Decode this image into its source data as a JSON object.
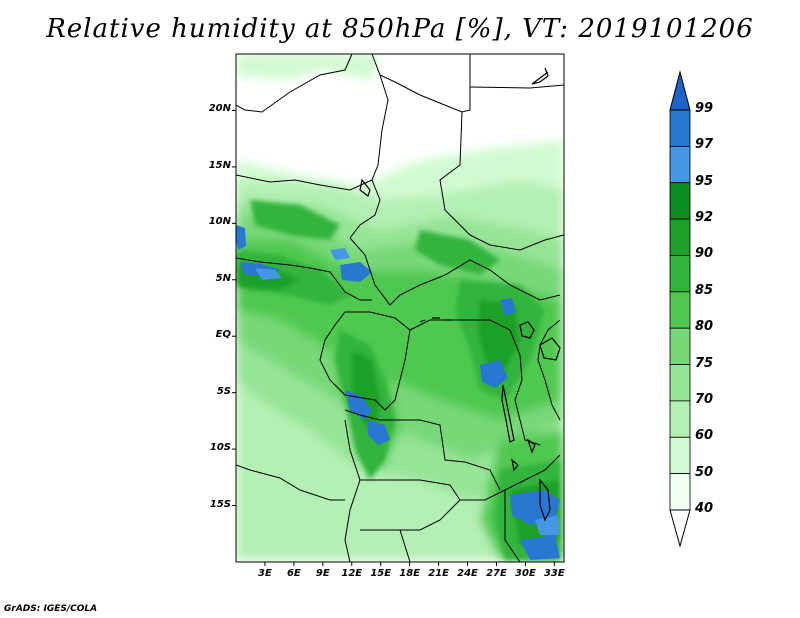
{
  "title": "Relative humidity at 850hPa [%], VT: 2019101206",
  "credit": "GrADS: IGES/COLA",
  "map": {
    "lon_range": [
      0,
      34
    ],
    "lat_range": [
      -20,
      25
    ],
    "y_ticks": [
      {
        "lat": 20,
        "label": "20N"
      },
      {
        "lat": 15,
        "label": "15N"
      },
      {
        "lat": 10,
        "label": "10N"
      },
      {
        "lat": 5,
        "label": "5N"
      },
      {
        "lat": 0,
        "label": "EQ"
      },
      {
        "lat": -5,
        "label": "5S"
      },
      {
        "lat": -10,
        "label": "10S"
      },
      {
        "lat": -15,
        "label": "15S"
      }
    ],
    "x_ticks": [
      {
        "lon": 3,
        "label": "3E"
      },
      {
        "lon": 6,
        "label": "6E"
      },
      {
        "lon": 9,
        "label": "9E"
      },
      {
        "lon": 12,
        "label": "12E"
      },
      {
        "lon": 15,
        "label": "15E"
      },
      {
        "lon": 18,
        "label": "18E"
      },
      {
        "lon": 21,
        "label": "21E"
      },
      {
        "lon": 24,
        "label": "24E"
      },
      {
        "lon": 27,
        "label": "27E"
      },
      {
        "lon": 30,
        "label": "30E"
      },
      {
        "lon": 33,
        "label": "33E"
      }
    ]
  },
  "colorbar": {
    "labels": [
      "99",
      "97",
      "95",
      "92",
      "90",
      "85",
      "80",
      "75",
      "70",
      "60",
      "50",
      "40"
    ],
    "colors": [
      "#1e64c8",
      "#2878d2",
      "#4696e6",
      "#0a8c1e",
      "#1ea028",
      "#32b43c",
      "#50c850",
      "#78d878",
      "#96e496",
      "#b4f0b4",
      "#d2fad2",
      "#f0fff0"
    ]
  }
}
